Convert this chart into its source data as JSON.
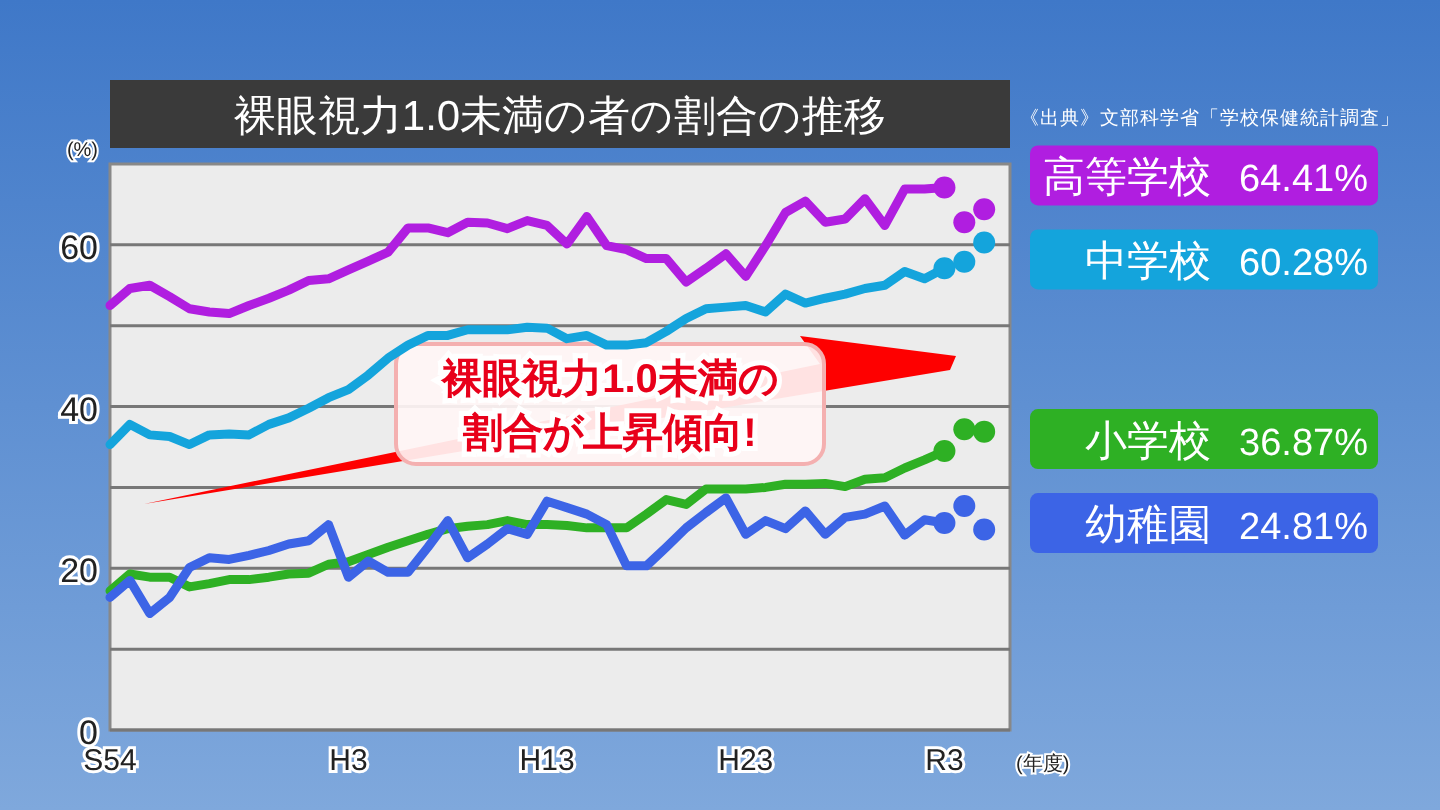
{
  "chart_data": {
    "type": "line",
    "title": "裸眼視力1.0未満の者の割合の推移",
    "ylabel": "(%)",
    "xlabel": "(年度)",
    "annotations": [
      "《出典》文部科学省「学校保健統計調査」",
      "裸眼視力1.0未満の割合が上昇傾向!"
    ],
    "ylim": [
      0,
      70
    ],
    "yticks": [
      0,
      {
        "value": 10,
        "label": null
      },
      20,
      {
        "value": 30,
        "label": null
      },
      40,
      {
        "value": 50,
        "label": null
      },
      60
    ],
    "grid": "y",
    "legend": "right",
    "categories": [
      "S54",
      null,
      null,
      null,
      null,
      null,
      null,
      null,
      null,
      null,
      null,
      null,
      "H3",
      null,
      null,
      null,
      null,
      null,
      null,
      null,
      null,
      null,
      "H13",
      null,
      null,
      null,
      null,
      null,
      null,
      null,
      null,
      null,
      "H23",
      null,
      null,
      null,
      null,
      null,
      null,
      null,
      null,
      null,
      "R3",
      null,
      null
    ],
    "series": [
      {
        "name": "高等学校 64.41%",
        "color": "#b01ee0",
        "values": [
          52.5,
          54.6,
          55.0,
          53.6,
          52.1,
          51.7,
          51.5,
          52.5,
          53.4,
          54.4,
          55.6,
          55.8,
          56.9,
          58.0,
          59.1,
          62.1,
          62.1,
          61.5,
          62.8,
          62.7,
          62.0,
          63.0,
          62.4,
          60.1,
          63.5,
          59.9,
          59.4,
          58.3,
          58.3,
          55.4,
          57.1,
          58.9,
          56.1,
          59.9,
          64.0,
          65.4,
          62.8,
          63.2,
          65.7,
          62.4,
          66.9,
          66.9,
          67.1,
          null,
          null
        ]
      },
      {
        "name": "中学校 60.28%",
        "color": "#14a4dc",
        "values": [
          35.3,
          37.8,
          36.5,
          36.3,
          35.3,
          36.5,
          36.6,
          36.5,
          37.8,
          38.6,
          39.8,
          41.1,
          42.1,
          43.9,
          46.0,
          47.6,
          48.8,
          48.8,
          49.5,
          49.5,
          49.5,
          49.8,
          49.7,
          48.4,
          48.8,
          47.6,
          47.6,
          47.9,
          49.3,
          50.9,
          52.1,
          52.3,
          52.5,
          51.7,
          53.9,
          52.8,
          53.4,
          53.9,
          54.6,
          55.0,
          56.7,
          55.8,
          57.1,
          null,
          null
        ]
      },
      {
        "name": "小学校 36.87%",
        "color": "#2eb024",
        "values": [
          17.2,
          19.3,
          18.9,
          18.9,
          17.7,
          18.1,
          18.6,
          18.6,
          18.9,
          19.3,
          19.4,
          20.5,
          20.8,
          21.7,
          22.6,
          23.4,
          24.2,
          24.9,
          25.2,
          25.4,
          25.9,
          25.4,
          25.4,
          25.3,
          25.0,
          25.0,
          25.0,
          26.7,
          28.5,
          27.9,
          29.8,
          29.8,
          29.8,
          30.0,
          30.4,
          30.4,
          30.5,
          30.1,
          31.0,
          31.2,
          32.4,
          33.4,
          34.5,
          null,
          null
        ]
      },
      {
        "name": "幼稚園 24.81%",
        "color": "#3c64e6",
        "values": [
          16.4,
          18.5,
          14.4,
          16.4,
          20.1,
          21.3,
          21.1,
          21.6,
          22.2,
          23.0,
          23.4,
          25.4,
          18.9,
          20.9,
          19.5,
          19.5,
          22.6,
          25.9,
          21.3,
          23.0,
          24.9,
          24.2,
          28.3,
          27.5,
          26.7,
          25.4,
          20.3,
          20.3,
          22.6,
          25.0,
          26.9,
          28.7,
          24.2,
          25.9,
          24.9,
          27.1,
          24.2,
          26.3,
          26.7,
          27.7,
          24.1,
          26.0,
          25.6,
          null,
          null
        ]
      },
      {
        "type": "scatter",
        "color": "#b01ee0",
        "values": [
          null,
          null,
          null,
          null,
          null,
          null,
          null,
          null,
          null,
          null,
          null,
          null,
          null,
          null,
          null,
          null,
          null,
          null,
          null,
          null,
          null,
          null,
          null,
          null,
          null,
          null,
          null,
          null,
          null,
          null,
          null,
          null,
          null,
          null,
          null,
          null,
          null,
          null,
          null,
          null,
          null,
          null,
          67.1,
          62.8,
          64.4
        ],
        "marker": "circle"
      },
      {
        "type": "scatter",
        "color": "#14a4dc",
        "values": [
          null,
          null,
          null,
          null,
          null,
          null,
          null,
          null,
          null,
          null,
          null,
          null,
          null,
          null,
          null,
          null,
          null,
          null,
          null,
          null,
          null,
          null,
          null,
          null,
          null,
          null,
          null,
          null,
          null,
          null,
          null,
          null,
          null,
          null,
          null,
          null,
          null,
          null,
          null,
          null,
          null,
          null,
          57.1,
          57.9,
          60.3
        ],
        "marker": "circle"
      },
      {
        "type": "scatter",
        "color": "#2eb024",
        "values": [
          null,
          null,
          null,
          null,
          null,
          null,
          null,
          null,
          null,
          null,
          null,
          null,
          null,
          null,
          null,
          null,
          null,
          null,
          null,
          null,
          null,
          null,
          null,
          null,
          null,
          null,
          null,
          null,
          null,
          null,
          null,
          null,
          null,
          null,
          null,
          null,
          null,
          null,
          null,
          null,
          null,
          null,
          34.5,
          37.2,
          36.9
        ],
        "marker": "circle"
      },
      {
        "type": "scatter",
        "color": "#3c64e6",
        "values": [
          null,
          null,
          null,
          null,
          null,
          null,
          null,
          null,
          null,
          null,
          null,
          null,
          null,
          null,
          null,
          null,
          null,
          null,
          null,
          null,
          null,
          null,
          null,
          null,
          null,
          null,
          null,
          null,
          null,
          null,
          null,
          null,
          null,
          null,
          null,
          null,
          null,
          null,
          null,
          null,
          null,
          null,
          25.6,
          27.7,
          24.8
        ],
        "marker": "circle"
      }
    ]
  }
}
